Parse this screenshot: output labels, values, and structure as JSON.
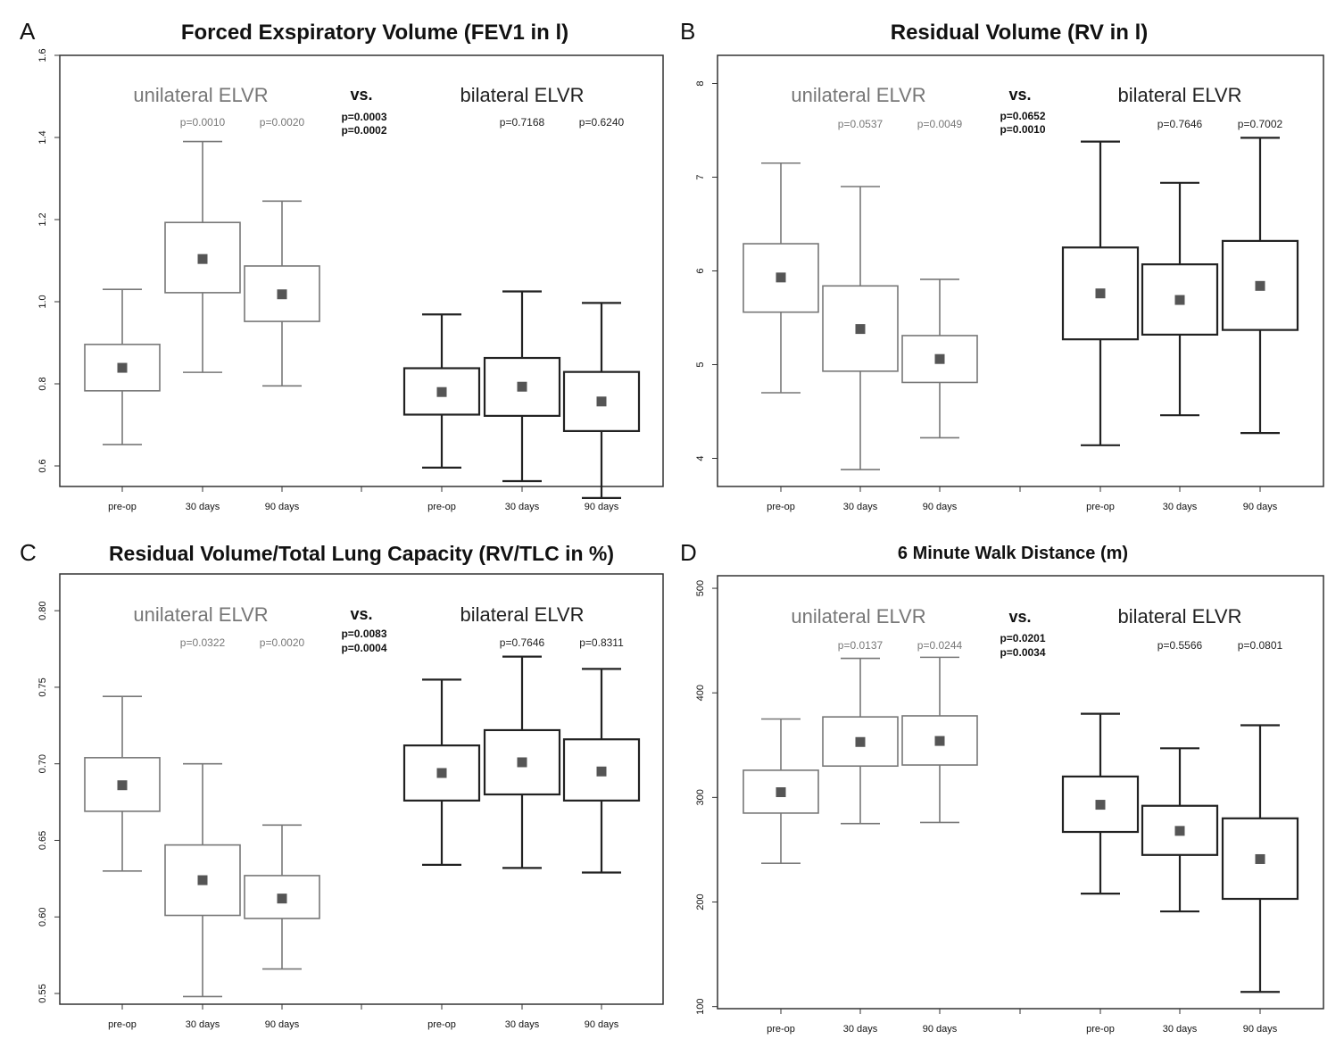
{
  "chart_data": [
    {
      "type": "box",
      "panel": "A",
      "title": "Forced Exspiratory Volume (FEV1 in l)",
      "ylim": [
        0.55,
        1.6
      ],
      "yticks": [
        0.6,
        0.8,
        1.0,
        1.2,
        1.4,
        1.6
      ],
      "ytick_labels": [
        "0.6",
        "0.8",
        "1.0",
        "1.2",
        "1.4",
        "1.6"
      ],
      "categories": [
        "pre-op",
        "30 days",
        "90 days",
        "pre-op",
        "30 days",
        "90 days"
      ],
      "groups": [
        {
          "label": "unilateral ELVR",
          "pvalues": [
            "",
            "p=0.0010",
            "p=0.0020"
          ]
        },
        {
          "label": "bilateral ELVR",
          "pvalues": [
            "",
            "p=0.7168",
            "p=0.6240"
          ]
        }
      ],
      "vs_label": "vs.",
      "vs_pvalues": [
        "p=0.0003",
        "p=0.0002"
      ],
      "boxes": [
        {
          "min": 0.652,
          "q1": 0.783,
          "median": 0.839,
          "q3": 0.896,
          "max": 1.03
        },
        {
          "min": 0.828,
          "q1": 1.022,
          "median": 1.104,
          "q3": 1.193,
          "max": 1.39
        },
        {
          "min": 0.795,
          "q1": 0.952,
          "median": 1.018,
          "q3": 1.087,
          "max": 1.245
        },
        {
          "min": 0.596,
          "q1": 0.725,
          "median": 0.78,
          "q3": 0.838,
          "max": 0.969
        },
        {
          "min": 0.563,
          "q1": 0.722,
          "median": 0.793,
          "q3": 0.863,
          "max": 1.025
        },
        {
          "min": 0.522,
          "q1": 0.685,
          "median": 0.757,
          "q3": 0.829,
          "max": 0.997
        }
      ]
    },
    {
      "type": "box",
      "panel": "B",
      "title": "Residual Volume (RV in l)",
      "ylim": [
        3.7,
        8.3
      ],
      "yticks": [
        4,
        5,
        6,
        7,
        8
      ],
      "ytick_labels": [
        "4",
        "5",
        "6",
        "7",
        "8"
      ],
      "categories": [
        "pre-op",
        "30 days",
        "90 days",
        "pre-op",
        "30 days",
        "90 days"
      ],
      "groups": [
        {
          "label": "unilateral ELVR",
          "pvalues": [
            "",
            "p=0.0537",
            "p=0.0049"
          ]
        },
        {
          "label": "bilateral ELVR",
          "pvalues": [
            "",
            "p=0.7646",
            "p=0.7002"
          ]
        }
      ],
      "vs_label": "vs.",
      "vs_pvalues": [
        "p=0.0652",
        "p=0.0010"
      ],
      "boxes": [
        {
          "min": 4.7,
          "q1": 5.56,
          "median": 5.93,
          "q3": 6.29,
          "max": 7.15
        },
        {
          "min": 3.88,
          "q1": 4.93,
          "median": 5.38,
          "q3": 5.84,
          "max": 6.9
        },
        {
          "min": 4.22,
          "q1": 4.81,
          "median": 5.06,
          "q3": 5.31,
          "max": 5.91
        },
        {
          "min": 4.14,
          "q1": 5.27,
          "median": 5.76,
          "q3": 6.25,
          "max": 7.38
        },
        {
          "min": 4.46,
          "q1": 5.32,
          "median": 5.69,
          "q3": 6.07,
          "max": 6.94
        },
        {
          "min": 4.27,
          "q1": 5.37,
          "median": 5.84,
          "q3": 6.32,
          "max": 7.42
        }
      ]
    },
    {
      "type": "box",
      "panel": "C",
      "title": "Residual Volume/Total Lung Capacity (RV/TLC in %)",
      "ylim": [
        0.543,
        0.824
      ],
      "yticks": [
        0.55,
        0.6,
        0.65,
        0.7,
        0.75,
        0.8
      ],
      "ytick_labels": [
        "0.55",
        "0.60",
        "0.65",
        "0.70",
        "0.75",
        "0.80"
      ],
      "categories": [
        "pre-op",
        "30 days",
        "90 days",
        "pre-op",
        "30 days",
        "90 days"
      ],
      "groups": [
        {
          "label": "unilateral ELVR",
          "pvalues": [
            "",
            "p=0.0322",
            "p=0.0020"
          ]
        },
        {
          "label": "bilateral ELVR",
          "pvalues": [
            "",
            "p=0.7646",
            "p=0.8311"
          ]
        }
      ],
      "vs_label": "vs.",
      "vs_pvalues": [
        "p=0.0083",
        "p=0.0004"
      ],
      "boxes": [
        {
          "min": 0.63,
          "q1": 0.669,
          "median": 0.686,
          "q3": 0.704,
          "max": 0.744
        },
        {
          "min": 0.548,
          "q1": 0.601,
          "median": 0.624,
          "q3": 0.647,
          "max": 0.7
        },
        {
          "min": 0.566,
          "q1": 0.599,
          "median": 0.612,
          "q3": 0.627,
          "max": 0.66
        },
        {
          "min": 0.634,
          "q1": 0.676,
          "median": 0.694,
          "q3": 0.712,
          "max": 0.755
        },
        {
          "min": 0.632,
          "q1": 0.68,
          "median": 0.701,
          "q3": 0.722,
          "max": 0.77
        },
        {
          "min": 0.629,
          "q1": 0.676,
          "median": 0.695,
          "q3": 0.716,
          "max": 0.762
        }
      ]
    },
    {
      "type": "box",
      "panel": "D",
      "title": "6 Minute Walk Distance (m)",
      "ylim": [
        98,
        512
      ],
      "yticks": [
        100,
        200,
        300,
        400,
        500
      ],
      "ytick_labels": [
        "100",
        "200",
        "300",
        "400",
        "500"
      ],
      "categories": [
        "pre-op",
        "30 days",
        "90 days",
        "pre-op",
        "30 days",
        "90 days"
      ],
      "groups": [
        {
          "label": "unilateral ELVR",
          "pvalues": [
            "",
            "p=0.0137",
            "p=0.0244"
          ]
        },
        {
          "label": "bilateral ELVR",
          "pvalues": [
            "",
            "p=0.5566",
            "p=0.0801"
          ]
        }
      ],
      "vs_label": "vs.",
      "vs_pvalues": [
        "p=0.0201",
        "p=0.0034"
      ],
      "boxes": [
        {
          "min": 237,
          "q1": 285,
          "median": 305,
          "q3": 326,
          "max": 375
        },
        {
          "min": 275,
          "q1": 330,
          "median": 353,
          "q3": 377,
          "max": 433
        },
        {
          "min": 276,
          "q1": 331,
          "median": 354,
          "q3": 378,
          "max": 434
        },
        {
          "min": 208,
          "q1": 267,
          "median": 293,
          "q3": 320,
          "max": 380
        },
        {
          "min": 191,
          "q1": 245,
          "median": 268,
          "q3": 292,
          "max": 347
        },
        {
          "min": 114,
          "q1": 203,
          "median": 241,
          "q3": 280,
          "max": 369
        }
      ]
    }
  ],
  "colors": {
    "unilateral": "#777777",
    "bilateral": "#222222",
    "frame": "#333333",
    "marker": "#555555"
  }
}
